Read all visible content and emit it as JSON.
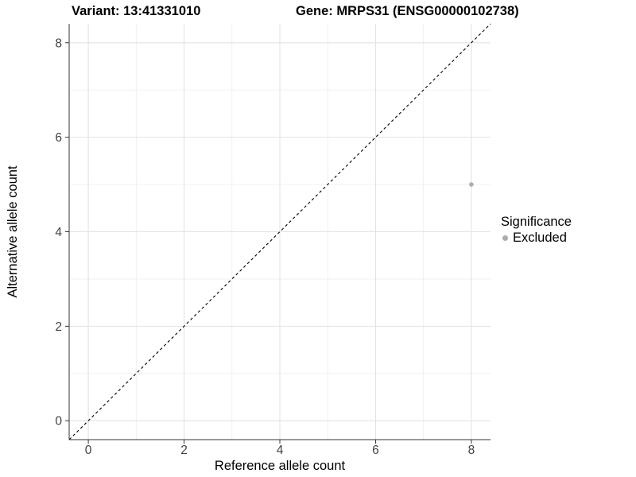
{
  "figure": {
    "titles": {
      "left": "Variant: 13:41331010",
      "right": "Gene: MRPS31 (ENSG00000102738)"
    }
  },
  "chart_data": {
    "type": "scatter",
    "title_left": "Variant: 13:41331010",
    "title_right": "Gene: MRPS31 (ENSG00000102738)",
    "xlabel": "Reference allele count",
    "ylabel": "Alternative allele count",
    "xlim": [
      -0.4,
      8.4
    ],
    "ylim": [
      -0.4,
      8.4
    ],
    "x_ticks": [
      0,
      2,
      4,
      6,
      8
    ],
    "y_ticks": [
      0,
      2,
      4,
      6,
      8
    ],
    "x_minor_ticks": [
      1,
      3,
      5,
      7
    ],
    "y_minor_ticks": [
      1,
      3,
      5,
      7
    ],
    "grid": "major and minor, light gray on white",
    "reference_line": {
      "type": "identity y=x",
      "line_style": "dashed",
      "color": "#000000"
    },
    "series": [
      {
        "name": "Excluded",
        "color": "#acacac",
        "points": [
          {
            "x": 8,
            "y": 5
          }
        ]
      }
    ],
    "legend": {
      "title": "Significance",
      "position": "right",
      "items": [
        {
          "label": "Excluded",
          "color": "#acacac"
        }
      ]
    }
  },
  "colors": {
    "background": "#ffffff",
    "grid_major": "#e3e3e3",
    "grid_minor": "#efefef",
    "axis_line": "#333333",
    "tick_label": "#424242",
    "point": "#acacac"
  }
}
